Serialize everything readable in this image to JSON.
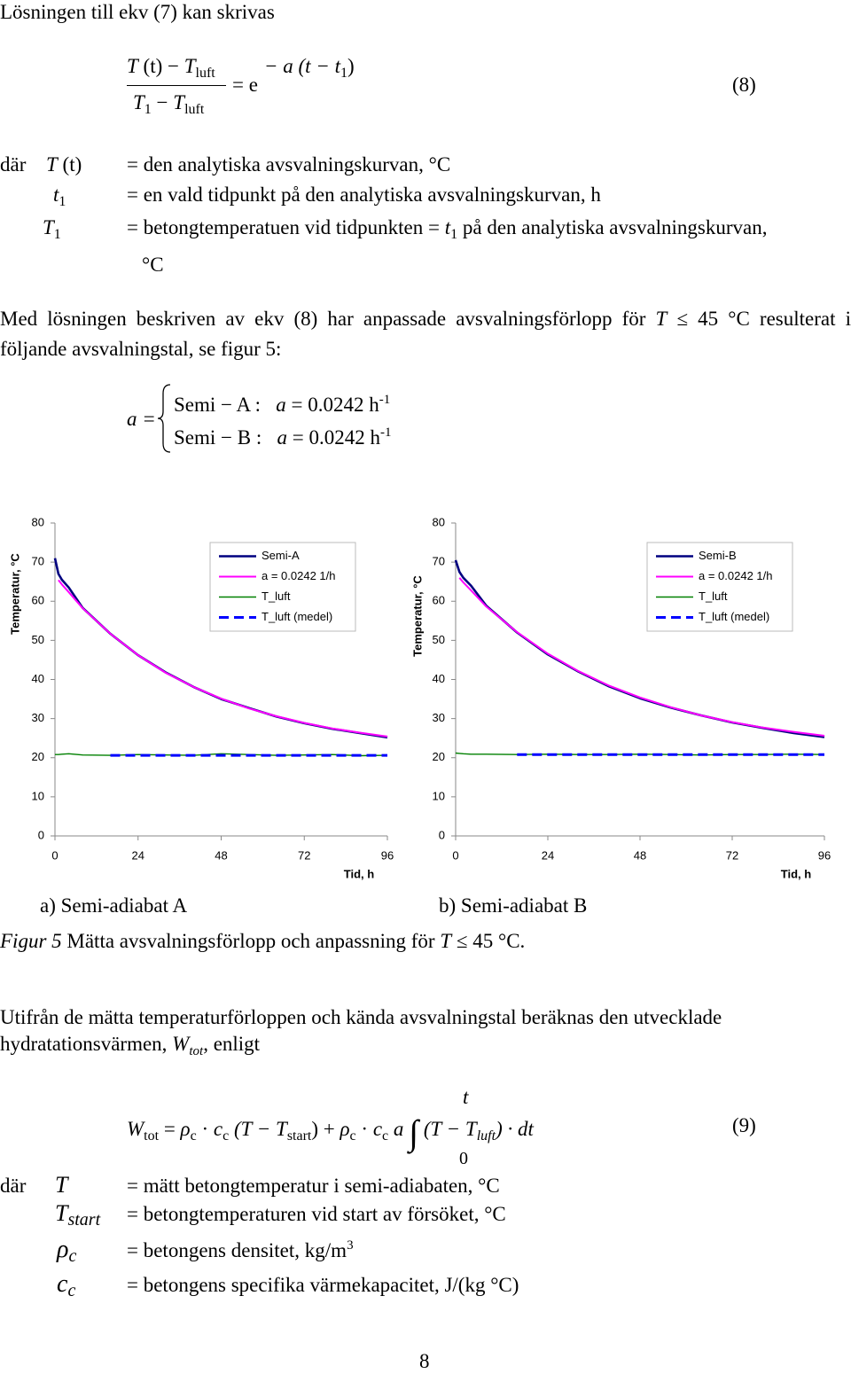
{
  "intro": "Lösningen till ekv (7) kan skrivas",
  "eq8": {
    "num": [
      "T",
      " (t) − ",
      "T",
      "luft"
    ],
    "den": [
      "T",
      "1",
      " − ",
      "T",
      "luft"
    ],
    "rhs": "= e",
    "exp": [
      "− a (t − t",
      "1",
      ")"
    ],
    "number": "(8)"
  },
  "defs1": {
    "lead": "där",
    "rows": [
      {
        "sym": [
          "T",
          " (t)"
        ],
        "text": "= den analytiska avsvalningskurvan, °C"
      },
      {
        "sym": [
          "t",
          "1"
        ],
        "text": "= en vald tidpunkt på den analytiska avsvalningskurvan, h"
      },
      {
        "sym": [
          "T",
          "1"
        ],
        "text": [
          "= betongtemperatuen vid tidpunkten = ",
          "t",
          "1",
          " på den analytiska avsvalningskurvan,"
        ],
        "cont": "°C"
      }
    ]
  },
  "para2": [
    "Med lösningen beskriven av ekv (8) har anpassade avsvalningsförlopp för ",
    "T",
    " ≤ 45 °C resulterat i följande avsvalningstal, se figur 5:"
  ],
  "eq_a": {
    "lhs": "a =",
    "rows": [
      [
        "Semi − A :",
        "a",
        " = 0.0242 h",
        "-1"
      ],
      [
        "Semi − B :",
        "a",
        " = 0.0242 h",
        "-1"
      ]
    ]
  },
  "chart_data": [
    {
      "type": "line",
      "ylabel": "Temperatur, °C",
      "xlabel": "Tid, h",
      "x": [
        0,
        1,
        2,
        4,
        8,
        16,
        24,
        32,
        40,
        48,
        56,
        64,
        72,
        80,
        88,
        96
      ],
      "xlim": [
        0,
        96
      ],
      "xticks": [
        0,
        24,
        48,
        72,
        96
      ],
      "ylim": [
        0,
        80
      ],
      "yticks": [
        0,
        10,
        20,
        30,
        40,
        50,
        60,
        70,
        80
      ],
      "legend": "upper right",
      "series": [
        {
          "name": "Semi-A",
          "color": "#000080",
          "values": [
            71,
            67,
            65.5,
            63.5,
            58.3,
            51.7,
            46.2,
            41.8,
            38.1,
            35.0,
            32.7,
            30.5,
            28.8,
            27.4,
            26.3,
            25.2
          ]
        },
        {
          "name": "a = 0.0242 1/h",
          "color": "#ff00ff",
          "values": [
            null,
            65.4,
            64.3,
            62.3,
            58.2,
            51.7,
            46.2,
            41.7,
            38.1,
            35.1,
            32.6,
            30.6,
            28.9,
            27.5,
            26.4,
            25.4
          ]
        },
        {
          "name": "T_luft",
          "color": "#008000",
          "values": [
            20.8,
            20.8,
            20.9,
            21.0,
            20.7,
            20.6,
            20.8,
            20.7,
            20.6,
            21.0,
            20.8,
            20.6,
            20.7,
            20.8,
            20.5,
            20.6
          ]
        },
        {
          "name": "T_luft (medel)",
          "color": "#0000ff",
          "line_style": "dashed",
          "values": [
            null,
            null,
            null,
            null,
            null,
            20.6,
            20.6,
            20.6,
            20.6,
            20.6,
            20.6,
            20.6,
            20.6,
            20.6,
            20.6,
            20.6
          ]
        }
      ]
    },
    {
      "type": "line",
      "ylabel": "Temperatur, °C",
      "xlabel": "Tid, h",
      "x": [
        0,
        1,
        2,
        4,
        8,
        16,
        24,
        32,
        40,
        48,
        56,
        64,
        72,
        80,
        88,
        96
      ],
      "xlim": [
        0,
        96
      ],
      "xticks": [
        0,
        24,
        48,
        72,
        96
      ],
      "ylim": [
        0,
        80
      ],
      "yticks": [
        0,
        10,
        20,
        30,
        40,
        50,
        60,
        70,
        80
      ],
      "legend": "upper right",
      "series": [
        {
          "name": "Semi-B",
          "color": "#000080",
          "values": [
            70.5,
            67.5,
            66,
            64,
            58.8,
            52,
            46.4,
            42,
            38.2,
            35.2,
            32.8,
            30.8,
            29,
            27.6,
            26.3,
            25.3
          ]
        },
        {
          "name": "a = 0.0242 1/h",
          "color": "#ff00ff",
          "values": [
            null,
            66,
            64.8,
            62.8,
            58.6,
            52.1,
            46.6,
            42.1,
            38.4,
            35.4,
            32.9,
            30.8,
            29.1,
            27.7,
            26.6,
            25.6
          ]
        },
        {
          "name": "T_luft",
          "color": "#008000",
          "values": [
            21.2,
            21.1,
            21.0,
            20.9,
            20.9,
            20.8,
            20.9,
            20.8,
            20.8,
            20.9,
            20.8,
            20.7,
            20.8,
            20.8,
            20.9,
            20.8
          ]
        },
        {
          "name": "T_luft (medel)",
          "color": "#0000ff",
          "line_style": "dashed",
          "values": [
            null,
            null,
            null,
            null,
            null,
            20.8,
            20.8,
            20.8,
            20.8,
            20.8,
            20.8,
            20.8,
            20.8,
            20.8,
            20.8,
            20.8
          ]
        }
      ]
    }
  ],
  "captions": [
    "a) Semi-adiabat A",
    "b) Semi-adiabat B"
  ],
  "figure_caption": [
    "Figur 5",
    " Mätta avsvalningsförlopp och anpassning för ",
    "T",
    " ≤ 45 °C."
  ],
  "para3": [
    "Utifrån de mätta temperaturförloppen och kända avsvalningstal beräknas den utvecklade hydratationsvärmen, ",
    "W",
    "tot",
    ", enligt"
  ],
  "eq9": {
    "parts": [
      "W",
      "tot",
      " = ",
      "ρ",
      "c",
      " · ",
      "c",
      "c",
      " (T − T",
      "start",
      ") + ",
      "ρ",
      "c",
      " · ",
      "c",
      "c",
      " a "
    ],
    "integral": "∫",
    "upper": "t",
    "lower": "0",
    "integrand": [
      " (T − T",
      "luft",
      ") · dt"
    ],
    "number": "(9)"
  },
  "defs2": {
    "lead": "där",
    "rows": [
      {
        "sym": [
          "T"
        ],
        "text": "= mätt betongtemperatur i semi-adiabaten, °C"
      },
      {
        "sym": [
          "T",
          "start"
        ],
        "text": "= betongtemperaturen vid start av försöket, °C"
      },
      {
        "sym": [
          "ρ",
          "c"
        ],
        "text": "= betongens densitet, kg/m",
        "sup": "3"
      },
      {
        "sym": [
          "c",
          "c"
        ],
        "text": "= betongens specifika värmekapacitet, J/(kg °C)"
      }
    ]
  },
  "page_number": "8"
}
